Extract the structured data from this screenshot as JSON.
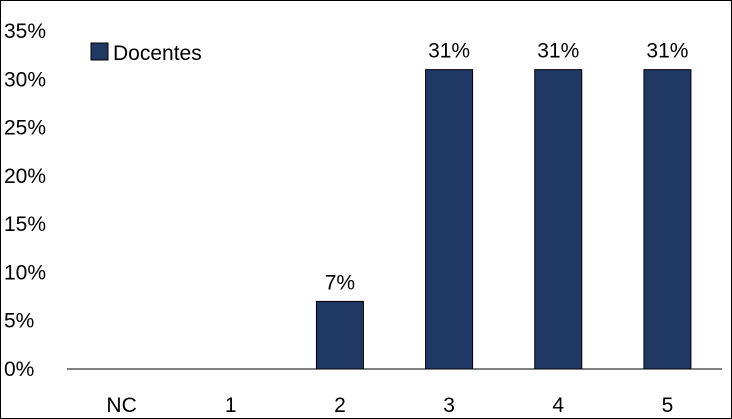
{
  "chart_data": {
    "type": "bar",
    "title": "",
    "xlabel": "",
    "ylabel": "",
    "categories": [
      "NC",
      "1",
      "2",
      "3",
      "4",
      "5"
    ],
    "series": [
      {
        "name": "Docentes",
        "values": [
          0,
          0,
          7,
          31,
          31,
          31
        ],
        "color": "#1f3864"
      }
    ],
    "data_labels": [
      "",
      "",
      "7%",
      "31%",
      "31%",
      "31%"
    ],
    "ylim": [
      0,
      35
    ],
    "yticks": [
      0,
      5,
      10,
      15,
      20,
      25,
      30,
      35
    ],
    "ytick_labels": [
      "0%",
      "5%",
      "10%",
      "15%",
      "20%",
      "25%",
      "30%",
      "35%"
    ],
    "grid": false,
    "legend_position": "top-left"
  }
}
